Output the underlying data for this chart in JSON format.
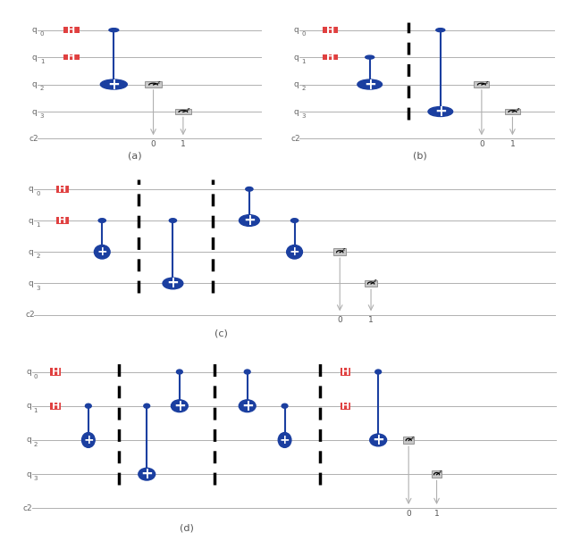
{
  "bg_color": "#ffffff",
  "wire_color": "#b0b0b0",
  "gate_blue": "#1b3fa0",
  "gate_red": "#e04040",
  "gate_gray": "#c8c8c8",
  "gate_gray_edge": "#888888",
  "qubit_labels_main": [
    "q",
    "q",
    "q",
    "q",
    "c2"
  ],
  "qubit_subscripts": [
    "0",
    "1",
    "2",
    "3",
    ""
  ],
  "subfig_labels": [
    "(a)",
    "(b)",
    "(c)",
    "(d)"
  ]
}
